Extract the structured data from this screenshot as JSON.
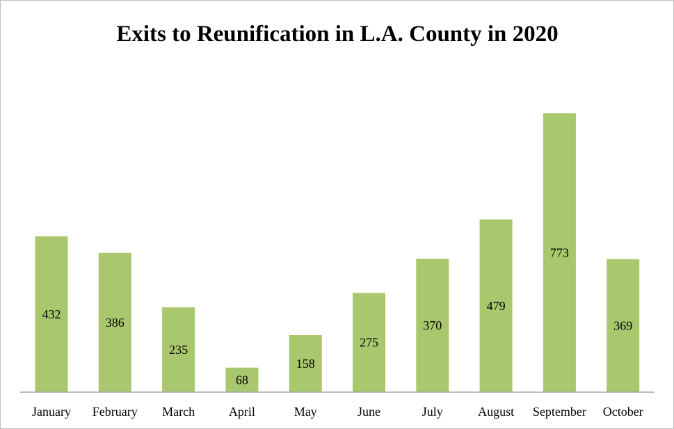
{
  "chart_data": {
    "type": "bar",
    "title": "Exits to Reunification in L.A. County in 2020",
    "xlabel": "",
    "ylabel": "",
    "categories": [
      "January",
      "February",
      "March",
      "April",
      "May",
      "June",
      "July",
      "August",
      "September",
      "October"
    ],
    "values": [
      432,
      386,
      235,
      68,
      158,
      275,
      370,
      479,
      773,
      369
    ],
    "ylim": [
      0,
      800
    ],
    "grid": false,
    "legend": "none",
    "bar_color": "#a9c76c",
    "axis_color": "#a6a6a6"
  }
}
